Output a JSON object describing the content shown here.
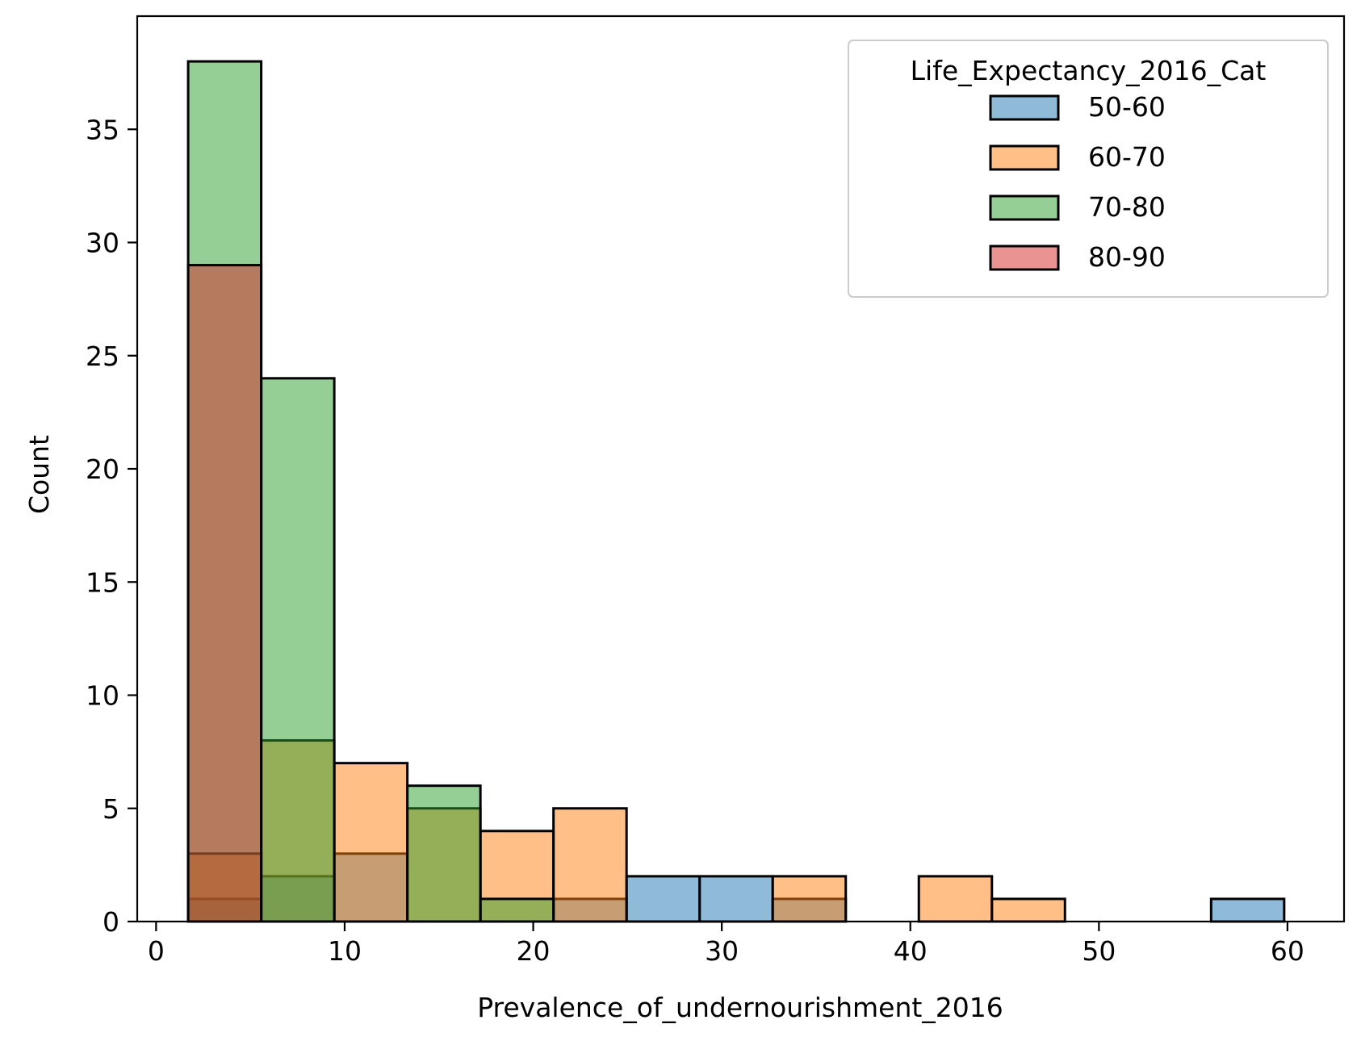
{
  "chart_data": {
    "type": "bar",
    "subtype": "overlaid-histogram",
    "xlabel": "Prevalence_of_undernourishment_2016",
    "ylabel": "Count",
    "xlim": [
      -1,
      63
    ],
    "ylim": [
      0,
      40
    ],
    "xticks": [
      0,
      10,
      20,
      30,
      40,
      50,
      60
    ],
    "yticks": [
      0,
      5,
      10,
      15,
      20,
      25,
      30,
      35
    ],
    "bin_edges": [
      1.7,
      5.575,
      9.45,
      13.325,
      17.2,
      21.075,
      24.95,
      28.825,
      32.7,
      36.575,
      40.45,
      44.325,
      48.2,
      52.075,
      55.95,
      59.825
    ],
    "legend": {
      "title": "Life_Expectancy_2016_Cat",
      "position": "top-right"
    },
    "series": [
      {
        "name": "50-60",
        "color": "#1f77b4",
        "values": [
          1,
          2,
          3,
          0,
          0,
          1,
          2,
          2,
          1,
          0,
          0,
          0,
          0,
          0,
          1
        ]
      },
      {
        "name": "60-70",
        "color": "#ff7f0e",
        "values": [
          3,
          8,
          7,
          5,
          4,
          5,
          0,
          0,
          2,
          0,
          2,
          1,
          0,
          0,
          0
        ]
      },
      {
        "name": "70-80",
        "color": "#2ca02c",
        "values": [
          38,
          24,
          0,
          6,
          1,
          0,
          0,
          0,
          0,
          0,
          0,
          0,
          0,
          0,
          0
        ]
      },
      {
        "name": "80-90",
        "color": "#d62728",
        "values": [
          29,
          0,
          0,
          0,
          0,
          0,
          0,
          0,
          0,
          0,
          0,
          0,
          0,
          0,
          0
        ]
      }
    ]
  }
}
